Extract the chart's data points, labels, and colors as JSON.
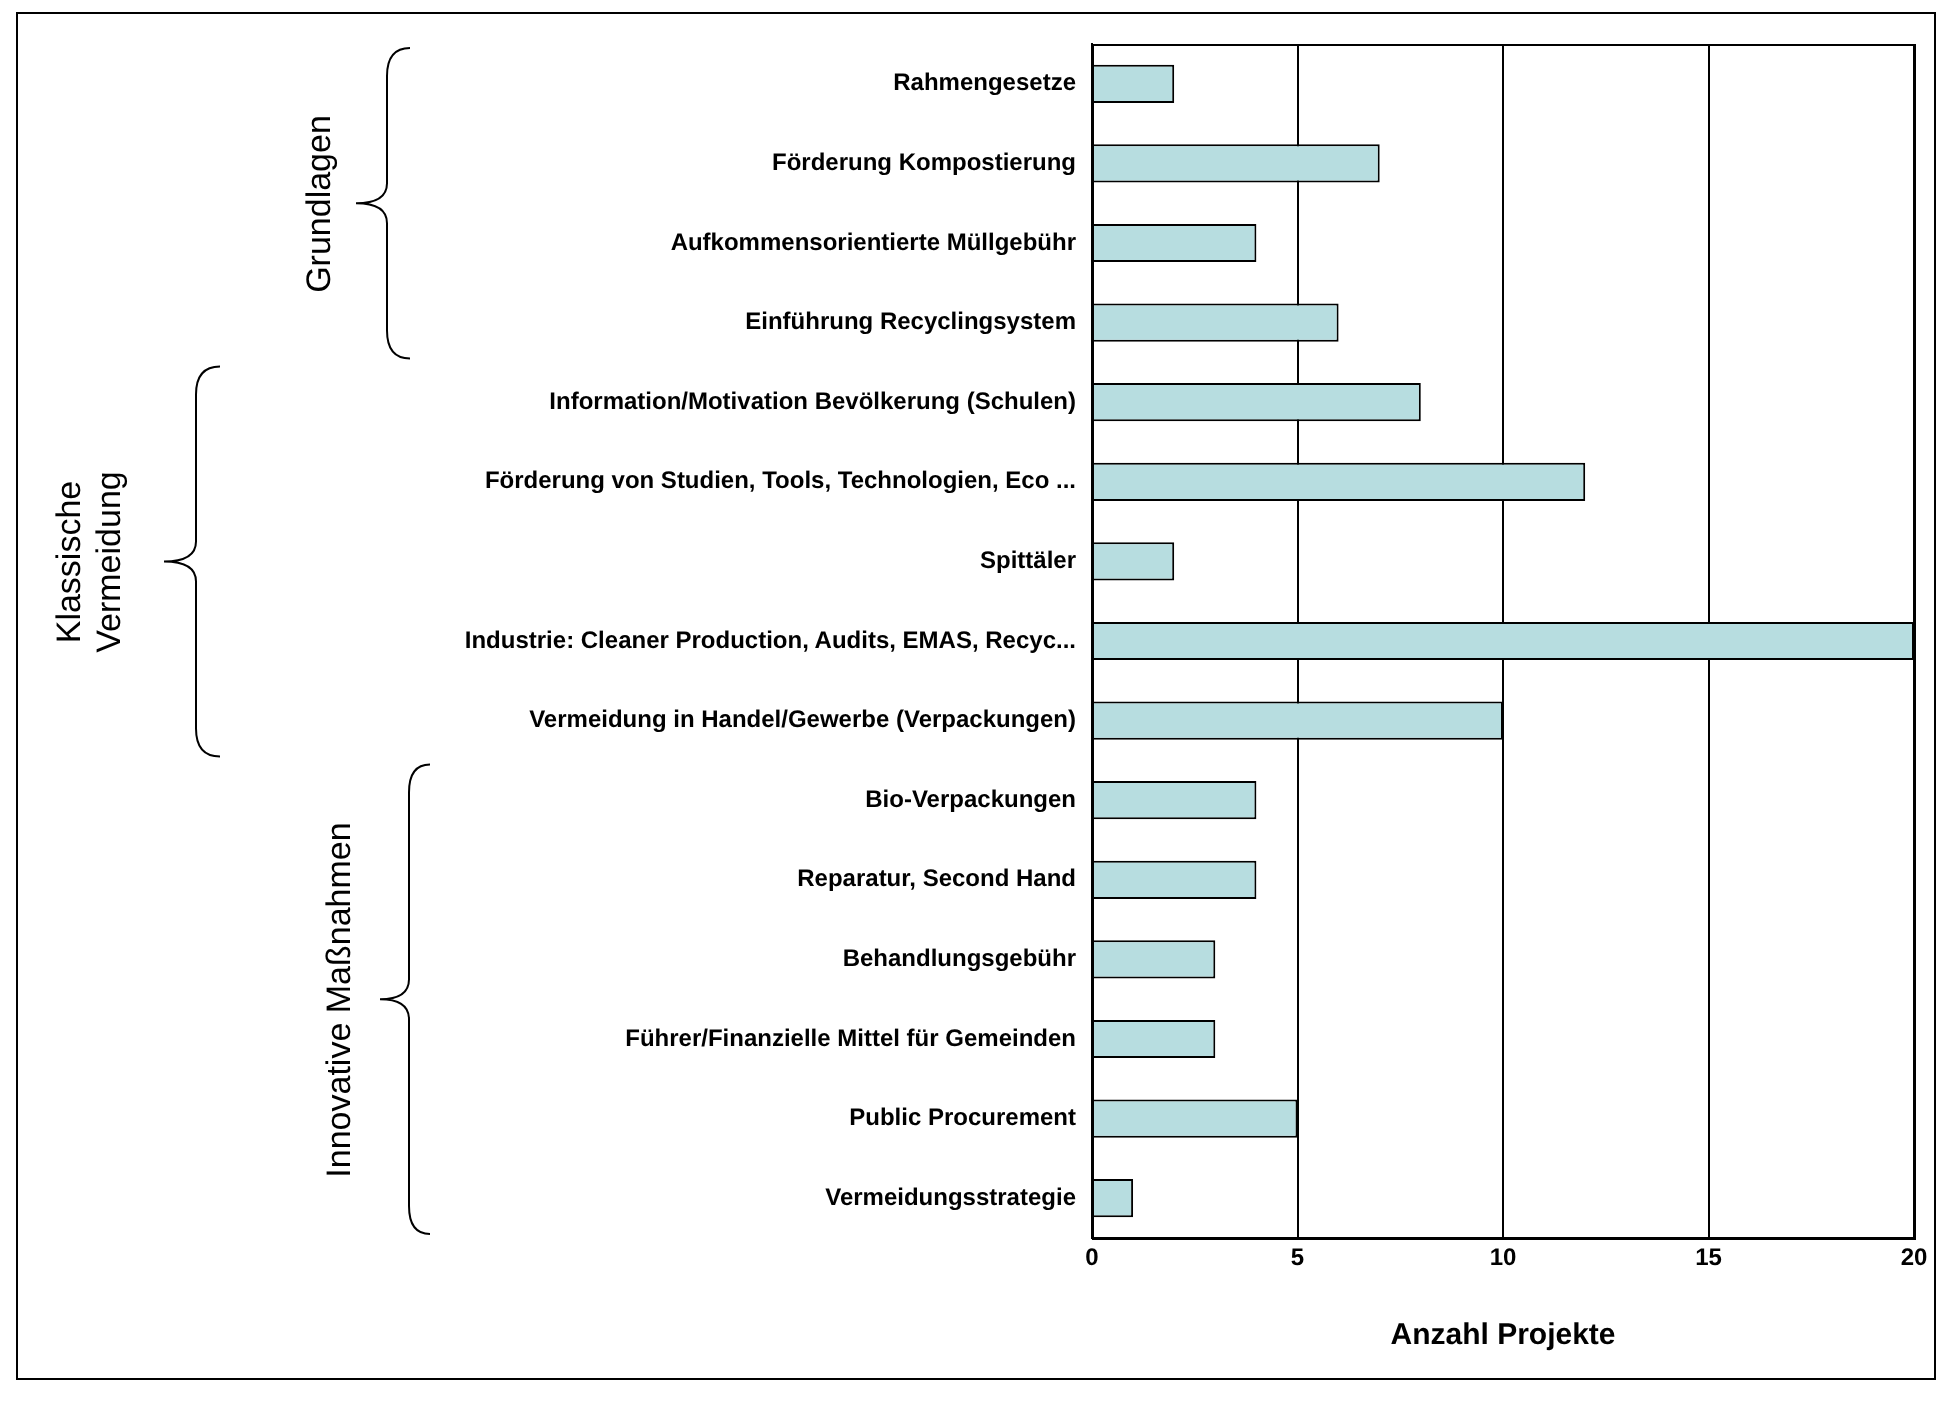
{
  "chart_data": {
    "type": "bar",
    "orientation": "horizontal",
    "xlabel": "Anzahl Projekte",
    "categories": [
      "Rahmengesetze",
      "Förderung Kompostierung",
      "Aufkommensorientierte Müllgebühr",
      "Einführung Recyclingsystem",
      "Information/Motivation Bevölkerung (Schulen)",
      "Förderung von Studien, Tools, Technologien, Eco ...",
      "Spittäler",
      "Industrie: Cleaner Production, Audits, EMAS, Recyc...",
      "Vermeidung in Handel/Gewerbe (Verpackungen)",
      "Bio-Verpackungen",
      "Reparatur, Second Hand",
      "Behandlungsgebühr",
      "Führer/Finanzielle Mittel für Gemeinden",
      "Public Procurement",
      "Vermeidungsstrategie"
    ],
    "values": [
      2,
      7,
      4,
      6,
      8,
      12,
      2,
      20,
      10,
      4,
      4,
      3,
      3,
      5,
      1
    ],
    "color": "#b7dde0",
    "xlim": [
      0,
      20
    ],
    "xticks": [
      0,
      5,
      10,
      15,
      20
    ],
    "grid": "x",
    "annotations": [
      "Grundlagen",
      "Klassische Vermeidung",
      "Innovative Maßnahmen"
    ]
  }
}
